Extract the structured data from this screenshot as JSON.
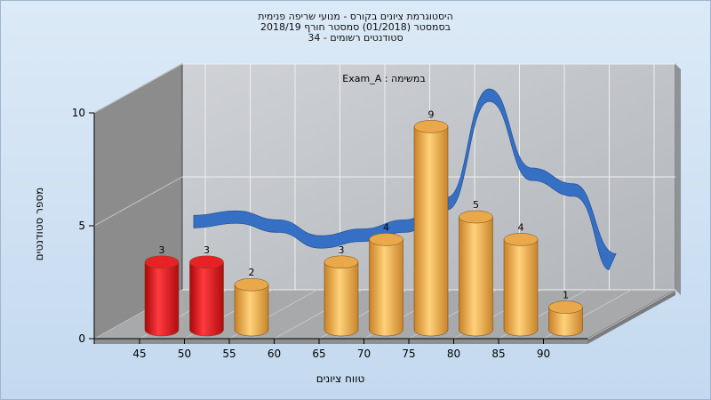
{
  "title_lines": [
    "היסטוגרמת ציונים בקורס - מנועי שריפה פנימית",
    "בסמסטר  (01/2018)  סמסטר חורף  2018/19",
    "סטודנטים רשומים - 34"
  ],
  "chart_data": {
    "type": "bar",
    "title": "היסטוגרמת ציונים בקורס - מנועי שריפה פנימית",
    "subtitle": "Exam_A : במשימה",
    "xlabel": "טווח ציונים",
    "ylabel": "מספר סטודנטים",
    "x_ticks": [
      "45",
      "50",
      "55",
      "60",
      "65",
      "70",
      "75",
      "80",
      "85",
      "90"
    ],
    "y_ticks": [
      0,
      5,
      10
    ],
    "ylim": [
      0,
      10
    ],
    "grid": true,
    "categories": [
      "45-50",
      "50-55",
      "55-60",
      "60-65",
      "65-70",
      "70-75",
      "75-80",
      "80-85",
      "85-90",
      "90-95"
    ],
    "values": [
      3,
      3,
      2,
      0,
      3,
      4,
      9,
      5,
      4,
      1
    ],
    "failing_color": "#e8161c",
    "passing_color": "#e9a94a",
    "curve_color": "#2f6cc4",
    "curve_values": [
      4.2,
      4.4,
      4.0,
      3.3,
      3.6,
      4.0,
      5.0,
      9.8,
      6.3,
      5.6,
      2.5
    ]
  }
}
